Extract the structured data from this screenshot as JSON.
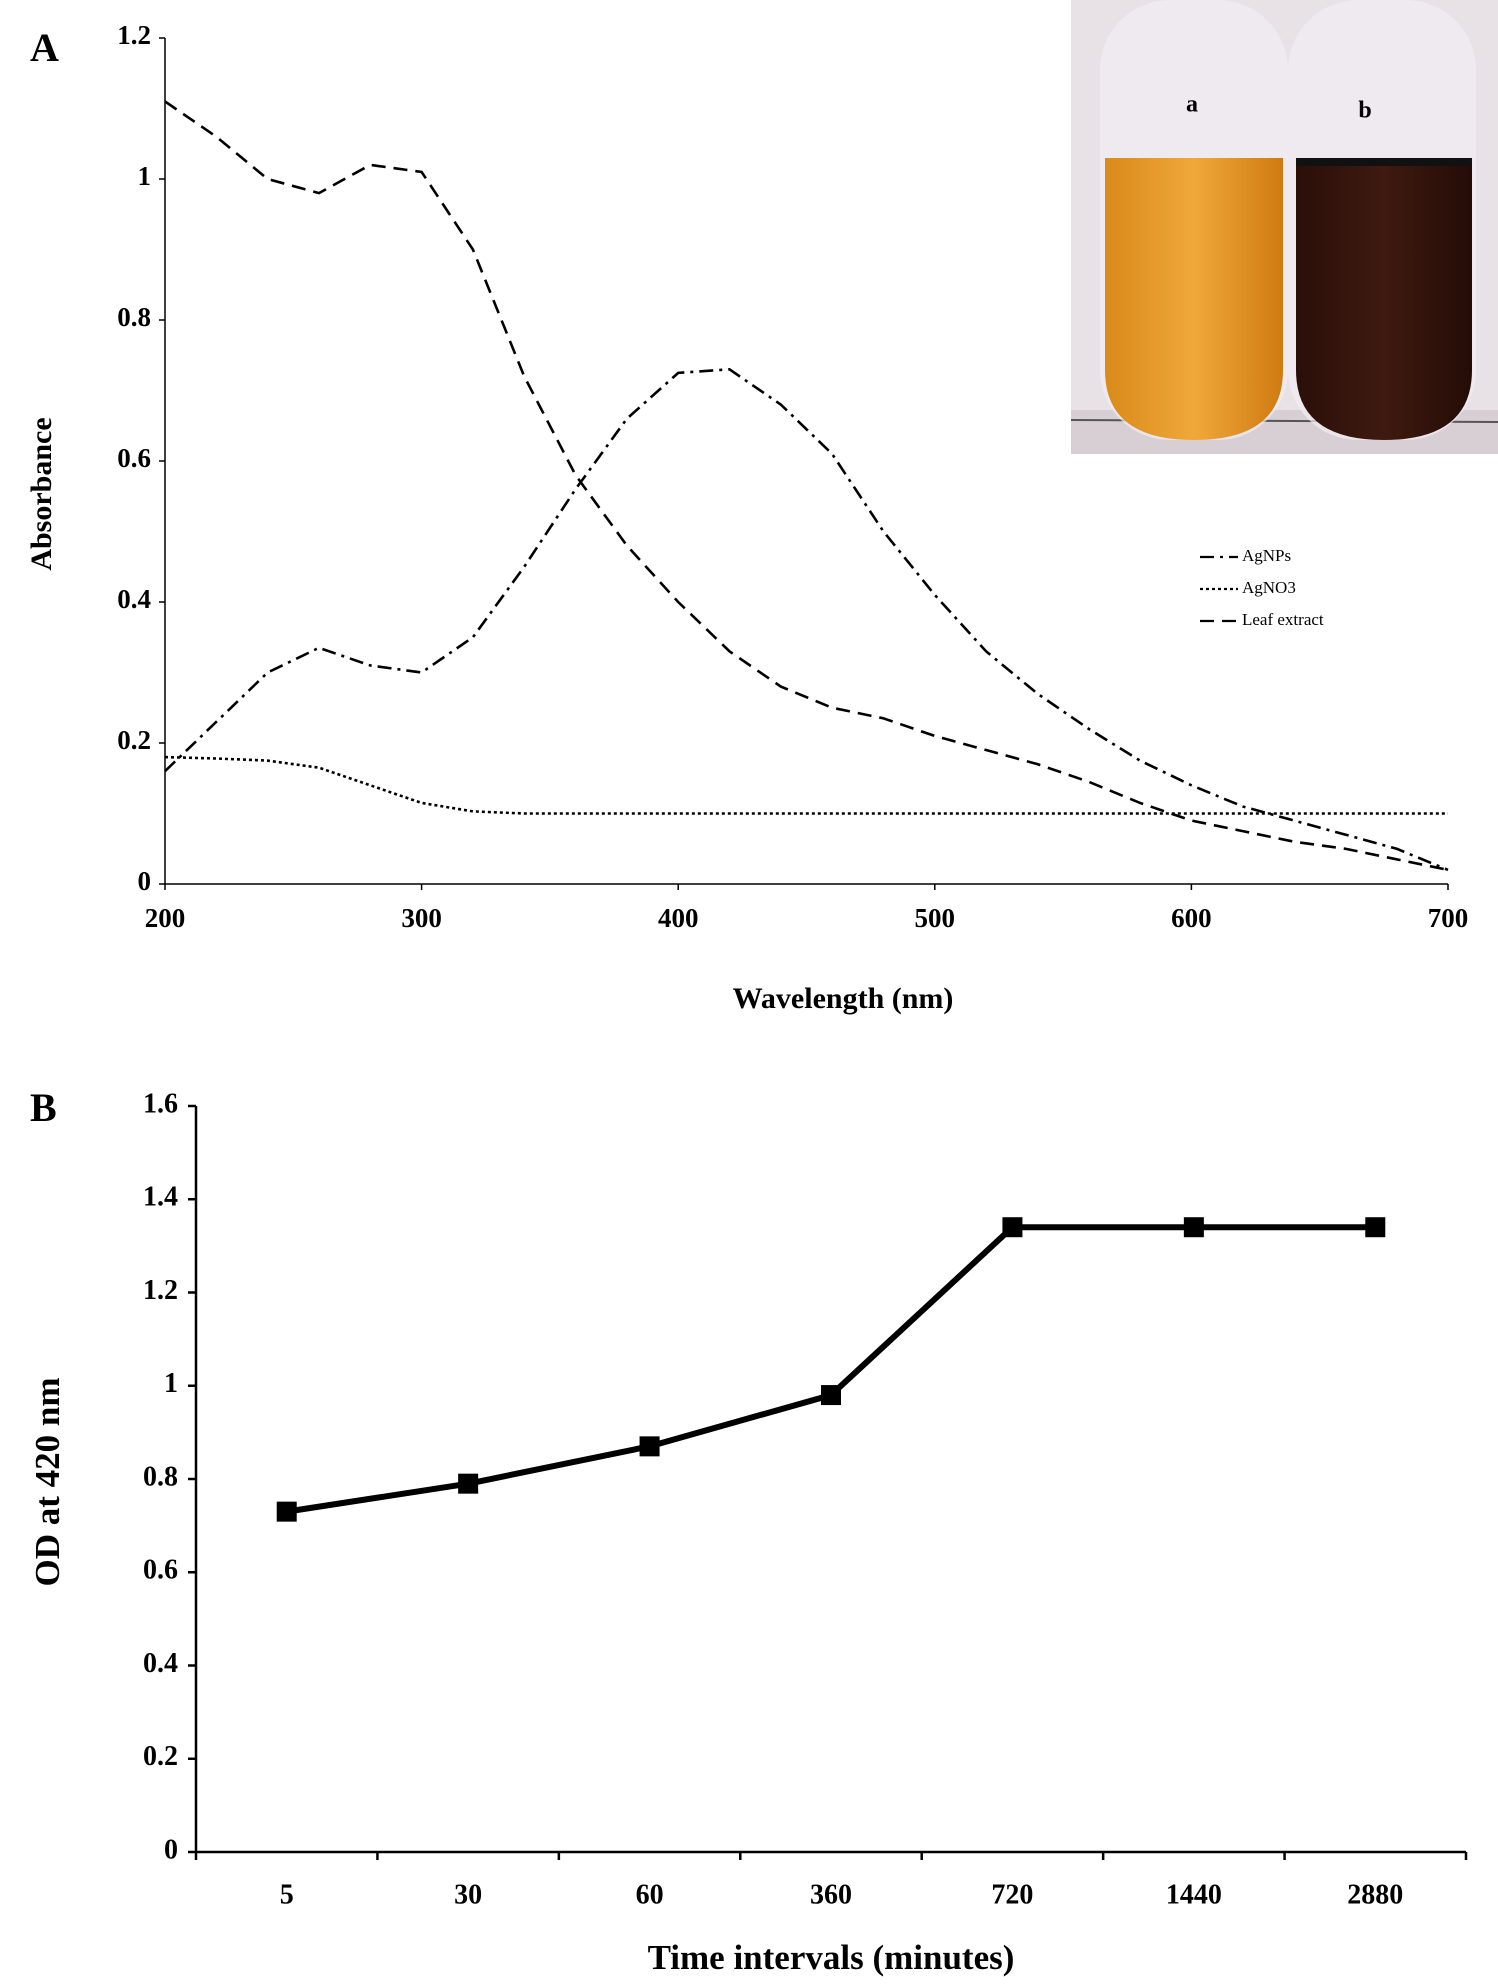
{
  "chart_data": [
    {
      "type": "line",
      "label": "A",
      "xlabel": "Wavelength (nm)",
      "ylabel": "Absorbance",
      "x": [
        200,
        220,
        240,
        260,
        280,
        300,
        320,
        340,
        360,
        380,
        400,
        420,
        440,
        460,
        480,
        500,
        520,
        540,
        560,
        580,
        600,
        620,
        640,
        660,
        680,
        700
      ],
      "series": [
        {
          "name": "AgNPs",
          "color": "#000000",
          "dash": "dashdot",
          "values": [
            0.16,
            0.23,
            0.3,
            0.335,
            0.31,
            0.3,
            0.35,
            0.45,
            0.56,
            0.66,
            0.725,
            0.73,
            0.68,
            0.61,
            0.5,
            0.41,
            0.33,
            0.27,
            0.22,
            0.175,
            0.14,
            0.11,
            0.09,
            0.07,
            0.05,
            0.02
          ]
        },
        {
          "name": "AgNO3",
          "color": "#000000",
          "dash": "dotted",
          "values": [
            0.18,
            0.178,
            0.175,
            0.165,
            0.14,
            0.115,
            0.103,
            0.1,
            0.1,
            0.1,
            0.1,
            0.1,
            0.1,
            0.1,
            0.1,
            0.1,
            0.1,
            0.1,
            0.1,
            0.1,
            0.1,
            0.1,
            0.1,
            0.1,
            0.1,
            0.1
          ]
        },
        {
          "name": "Leaf extract",
          "color": "#000000",
          "dash": "dashed",
          "values": [
            1.11,
            1.06,
            1.0,
            0.98,
            1.02,
            1.01,
            0.9,
            0.72,
            0.58,
            0.48,
            0.4,
            0.33,
            0.28,
            0.25,
            0.235,
            0.21,
            0.19,
            0.17,
            0.145,
            0.115,
            0.09,
            0.075,
            0.06,
            0.05,
            0.035,
            0.02
          ]
        }
      ],
      "xlim": [
        200,
        700
      ],
      "xticks": [
        200,
        300,
        400,
        500,
        600,
        700
      ],
      "ylim": [
        0,
        1.2
      ],
      "yticks": [
        0,
        0.2,
        0.4,
        0.6,
        0.8,
        1,
        1.2
      ],
      "legend": "right",
      "annotations": [
        "a",
        "b"
      ]
    },
    {
      "type": "line",
      "label": "B",
      "xlabel": "Time intervals (minutes)",
      "ylabel": "OD at 420 nm",
      "categories": [
        "5",
        "30",
        "60",
        "360",
        "720",
        "1440",
        "2880"
      ],
      "values": [
        0.73,
        0.79,
        0.87,
        0.98,
        1.34,
        1.34,
        1.34
      ],
      "color": "#000000",
      "marker": "square",
      "ylim": [
        0,
        1.6
      ],
      "yticks": [
        0,
        0.2,
        0.4,
        0.6,
        0.8,
        1,
        1.2,
        1.4,
        1.6
      ]
    }
  ]
}
